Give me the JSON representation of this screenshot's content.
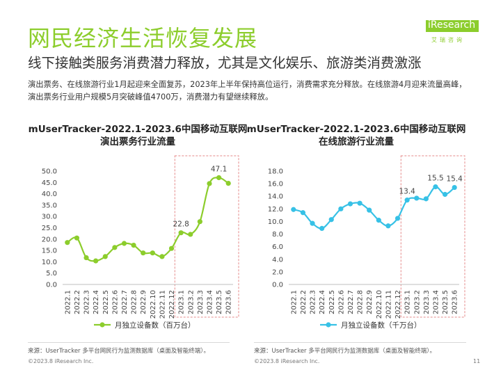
{
  "header": {
    "title": "网民经济生活恢复发展",
    "subtitle": "线下接触类服务消费潜力释放，尤其是文化娱乐、旅游类消费激涨",
    "description": "演出票务、在线旅游行业1月起迎来全面复苏，2023年上半年保持高位运行，消费需求充分释放。在线旅游4月迎来流量高峰，演出票务行业用户规模5月突破峰值4700万，消费潜力有望继续释放。"
  },
  "logo": {
    "text": "iResearch",
    "sub": "艾瑞咨询"
  },
  "chart_data": [
    {
      "type": "line",
      "title": "mUserTracker-2022.1-2023.6中国移动互联网演出票务行业流量",
      "categories": [
        "2022.1",
        "2022.2",
        "2022.3",
        "2022.4",
        "2022.5",
        "2022.6",
        "2022.7",
        "2022.8",
        "2022.9",
        "2022.10",
        "2022.11",
        "2022.12",
        "2023.1",
        "2023.2",
        "2023.3",
        "2023.4",
        "2023.5",
        "2023.6"
      ],
      "series": [
        {
          "name": "月独立设备数（百万台）",
          "values": [
            18.5,
            20.5,
            11.8,
            10.4,
            12.3,
            16.3,
            18.1,
            17.3,
            13.9,
            13.9,
            12.3,
            15.9,
            22.8,
            22.1,
            27.7,
            44.5,
            47.1,
            44.6
          ],
          "color": "#8ccd2c"
        }
      ],
      "ylim": [
        0,
        50
      ],
      "yticks": [
        "0.0",
        "5.0",
        "10.0",
        "15.0",
        "20.0",
        "25.0",
        "30.0",
        "35.0",
        "40.0",
        "45.0",
        "50.0"
      ],
      "data_labels": [
        {
          "index": 12,
          "text": "22.8"
        },
        {
          "index": 16,
          "text": "47.1"
        }
      ],
      "highlight_range": [
        "2022.12",
        "2023.6"
      ],
      "legend": "bottom"
    },
    {
      "type": "line",
      "title": "mUserTracker-2022.1-2023.6中国移动互联网在线旅游行业流量",
      "categories": [
        "2022.1",
        "2022.2",
        "2022.3",
        "2022.4",
        "2022.5",
        "2022.6",
        "2022.7",
        "2022.8",
        "2022.9",
        "2022.10",
        "2022.11",
        "2022.12",
        "2023.1",
        "2023.2",
        "2023.3",
        "2023.4",
        "2023.5",
        "2023.6"
      ],
      "series": [
        {
          "name": "月独立设备数（千万台）",
          "values": [
            11.9,
            11.4,
            9.7,
            8.9,
            10.3,
            12.0,
            12.8,
            12.9,
            11.8,
            10.2,
            9.3,
            10.5,
            13.4,
            13.7,
            13.6,
            15.5,
            14.3,
            15.4
          ],
          "color": "#37c1e6"
        }
      ],
      "ylim": [
        0,
        18
      ],
      "yticks": [
        "0.0",
        "2.0",
        "4.0",
        "6.0",
        "8.0",
        "10.0",
        "12.0",
        "14.0",
        "16.0",
        "18.0"
      ],
      "data_labels": [
        {
          "index": 12,
          "text": "13.4"
        },
        {
          "index": 15,
          "text": "15.5"
        },
        {
          "index": 17,
          "text": "15.4"
        }
      ],
      "highlight_range": [
        "2022.12",
        "2023.6"
      ],
      "legend": "bottom"
    }
  ],
  "footer": {
    "source_left": "来源：UserTracker 多平台网民行为监测数据库（桌面及智能终端）。",
    "source_right": "来源：UserTracker 多平台网民行为监测数据库（桌面及智能终端）。",
    "copyright_left": "©2023.8 iResearch Inc.",
    "copyright_right": "©2023.8 iResearch Inc.",
    "page_number": "11"
  }
}
